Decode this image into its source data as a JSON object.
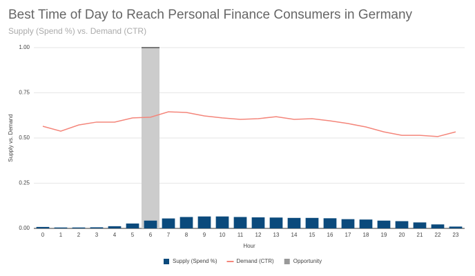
{
  "chart_data": {
    "type": "bar",
    "title": "Best Time of Day to Reach Personal Finance Consumers in Germany",
    "subtitle": "Supply (Spend %) vs. Demand (CTR)",
    "x_label": "Hour",
    "y_label": "Supply vs. Demand",
    "categories": [
      "0",
      "1",
      "2",
      "3",
      "4",
      "5",
      "6",
      "7",
      "8",
      "9",
      "10",
      "11",
      "12",
      "13",
      "14",
      "15",
      "16",
      "17",
      "18",
      "19",
      "20",
      "21",
      "22",
      "23"
    ],
    "series": [
      {
        "name": "Supply (Spend %)",
        "type": "bar",
        "color": "#0b4a7c",
        "values": [
          0.008,
          0.005,
          0.005,
          0.006,
          0.012,
          0.027,
          0.043,
          0.055,
          0.063,
          0.066,
          0.066,
          0.063,
          0.061,
          0.06,
          0.058,
          0.058,
          0.056,
          0.051,
          0.049,
          0.043,
          0.04,
          0.033,
          0.022,
          0.01
        ]
      },
      {
        "name": "Demand (CTR)",
        "type": "line",
        "color": "#f4857a",
        "values": [
          0.565,
          0.538,
          0.572,
          0.588,
          0.588,
          0.611,
          0.615,
          0.645,
          0.641,
          0.622,
          0.611,
          0.603,
          0.607,
          0.618,
          0.603,
          0.607,
          0.595,
          0.58,
          0.561,
          0.534,
          0.515,
          0.515,
          0.508,
          0.534
        ]
      },
      {
        "name": "Opportunity",
        "type": "band",
        "color": "#cccccc",
        "values": [
          null,
          null,
          null,
          null,
          null,
          null,
          1.0,
          null,
          null,
          null,
          null,
          null,
          null,
          null,
          null,
          null,
          null,
          null,
          null,
          null,
          null,
          null,
          null,
          null
        ]
      }
    ],
    "ylim": [
      0,
      1
    ],
    "yticks": [
      {
        "value": 0,
        "label": "0.00"
      },
      {
        "value": 0.25,
        "label": "0.25"
      },
      {
        "value": 0.5,
        "label": "0.50"
      },
      {
        "value": 0.75,
        "label": "0.75"
      },
      {
        "value": 1,
        "label": "1.00"
      }
    ],
    "grid": true,
    "legend": "bottom"
  }
}
